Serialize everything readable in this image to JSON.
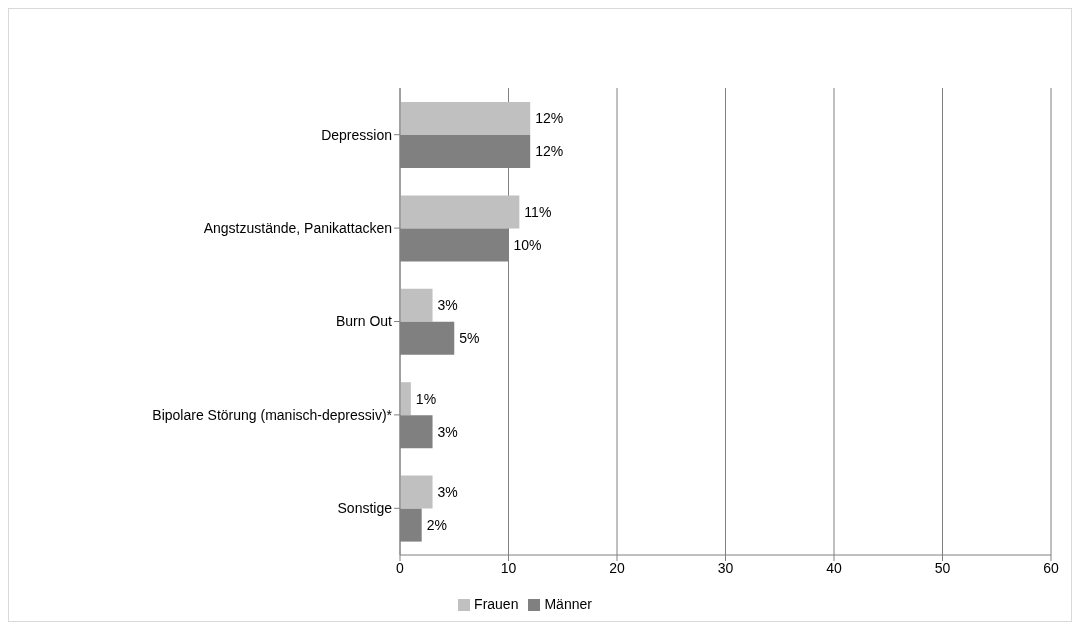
{
  "chart_data": {
    "type": "bar",
    "orientation": "horizontal",
    "categories": [
      "Depression",
      "Angstzustände, Panikattacken",
      "Burn Out",
      "Bipolare Störung (manisch-depressiv)*",
      "Sonstige"
    ],
    "series": [
      {
        "name": "Frauen",
        "color": "#c0c0c0",
        "values": [
          12,
          11,
          3,
          1,
          3
        ],
        "value_labels": [
          "12%",
          "11%",
          "3%",
          "1%",
          "3%"
        ]
      },
      {
        "name": "Männer",
        "color": "#808080",
        "values": [
          12,
          10,
          5,
          3,
          2
        ],
        "value_labels": [
          "12%",
          "10%",
          "5%",
          "3%",
          "2%"
        ]
      }
    ],
    "xlim": [
      0,
      60
    ],
    "xticks": [
      0,
      10,
      20,
      30,
      40,
      50,
      60
    ],
    "grid": "x",
    "legend": "bottom"
  }
}
